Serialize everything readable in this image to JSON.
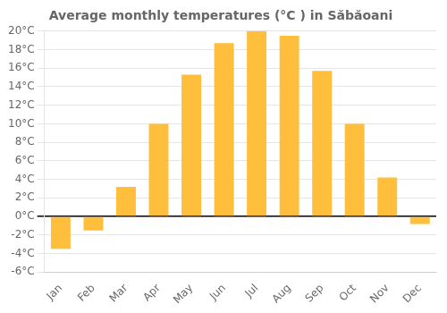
{
  "chart_data": {
    "type": "bar",
    "title": "Average monthly temperatures (°C ) in Săbăoani",
    "categories": [
      "Jan",
      "Feb",
      "Mar",
      "Apr",
      "May",
      "Jun",
      "Jul",
      "Aug",
      "Sep",
      "Oct",
      "Nov",
      "Dec"
    ],
    "values": [
      -3.5,
      -1.5,
      3.2,
      10.0,
      15.3,
      18.7,
      20.0,
      19.5,
      15.7,
      10.0,
      4.2,
      -0.8
    ],
    "color": "#FFBE3C",
    "ylim": [
      -6,
      20
    ],
    "yticks": [
      {
        "value": -6,
        "label": "-6°C"
      },
      {
        "value": -4,
        "label": "-4°C"
      },
      {
        "value": -2,
        "label": "-2°C"
      },
      {
        "value": 0,
        "label": "0°C"
      },
      {
        "value": 2,
        "label": "2°C"
      },
      {
        "value": 4,
        "label": "4°C"
      },
      {
        "value": 6,
        "label": "6°C"
      },
      {
        "value": 8,
        "label": "8°C"
      },
      {
        "value": 10,
        "label": "10°C"
      },
      {
        "value": 12,
        "label": "12°C"
      },
      {
        "value": 14,
        "label": "14°C"
      },
      {
        "value": 16,
        "label": "16°C"
      },
      {
        "value": 18,
        "label": "18°C"
      },
      {
        "value": 20,
        "label": "20°C"
      }
    ],
    "grid": true
  }
}
